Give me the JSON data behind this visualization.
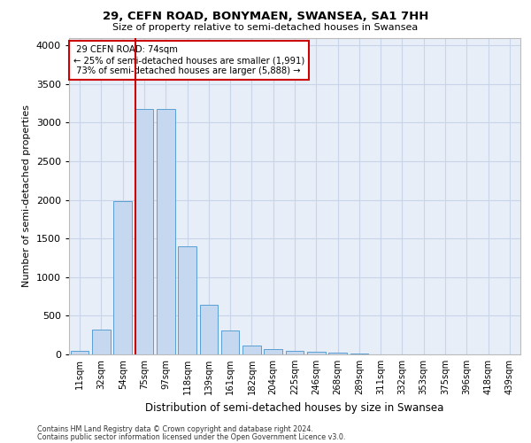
{
  "title": "29, CEFN ROAD, BONYMAEN, SWANSEA, SA1 7HH",
  "subtitle": "Size of property relative to semi-detached houses in Swansea",
  "xlabel": "Distribution of semi-detached houses by size in Swansea",
  "ylabel": "Number of semi-detached properties",
  "footnote1": "Contains HM Land Registry data © Crown copyright and database right 2024.",
  "footnote2": "Contains public sector information licensed under the Open Government Licence v3.0.",
  "bar_labels": [
    "11sqm",
    "32sqm",
    "54sqm",
    "75sqm",
    "97sqm",
    "118sqm",
    "139sqm",
    "161sqm",
    "182sqm",
    "204sqm",
    "225sqm",
    "246sqm",
    "268sqm",
    "289sqm",
    "311sqm",
    "332sqm",
    "353sqm",
    "375sqm",
    "396sqm",
    "418sqm",
    "439sqm"
  ],
  "bar_values": [
    50,
    320,
    1980,
    3180,
    3180,
    1400,
    640,
    310,
    110,
    70,
    50,
    30,
    20,
    10,
    5,
    3,
    2,
    2,
    1,
    1,
    1
  ],
  "bar_color": "#c5d8ef",
  "bar_edge_color": "#5a9fd4",
  "grid_color": "#c8d4e8",
  "background_color": "#e8eef8",
  "property_label": "29 CEFN ROAD: 74sqm",
  "pct_smaller": 25,
  "pct_larger": 73,
  "n_smaller": 1991,
  "n_larger": 5888,
  "vline_x": 3.0,
  "annotation_box_color": "#ffffff",
  "annotation_box_edge": "#cc0000",
  "vline_color": "#cc0000",
  "ylim": [
    0,
    4100
  ],
  "yticks": [
    0,
    500,
    1000,
    1500,
    2000,
    2500,
    3000,
    3500,
    4000
  ]
}
